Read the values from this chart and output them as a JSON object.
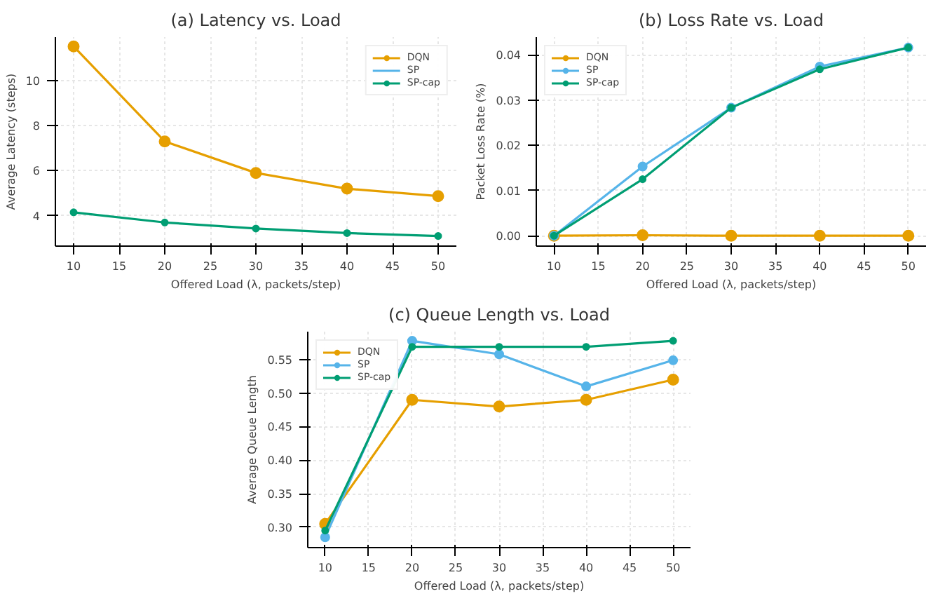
{
  "chart_data": [
    {
      "type": "line",
      "title": "(a) Latency vs. Load",
      "xlabel": "Offered Load (λ, packets/step)",
      "ylabel": "Average Latency (steps)",
      "x": [
        10,
        20,
        30,
        40,
        50
      ],
      "xlim": [
        8,
        52
      ],
      "xticks": [
        10,
        15,
        20,
        25,
        30,
        35,
        40,
        45,
        50
      ],
      "ylim": [
        2.65,
        11.93
      ],
      "yticks": [
        4,
        6,
        8,
        10
      ],
      "grid": true,
      "legend": "top right",
      "marker": "circle",
      "series": [
        {
          "name": "DQN",
          "color": "#e69f00",
          "values": [
            11.52,
            7.3,
            5.9,
            5.2,
            4.87
          ]
        },
        {
          "name": "SP",
          "color": "#56b4e9",
          "values": [
            null,
            null,
            null,
            null,
            null
          ]
        },
        {
          "name": "SP-cap",
          "color": "#009e73",
          "values": [
            4.15,
            3.7,
            3.43,
            3.23,
            3.1
          ]
        }
      ]
    },
    {
      "type": "line",
      "title": "(b) Loss Rate vs. Load",
      "xlabel": "Offered Load (λ, packets/step)",
      "ylabel": "Packet Loss Rate (%)",
      "x": [
        10,
        20,
        30,
        40,
        50
      ],
      "xlim": [
        8,
        52
      ],
      "xticks": [
        10,
        15,
        20,
        25,
        30,
        35,
        40,
        45,
        50
      ],
      "ylim": [
        -0.0023,
        0.0439
      ],
      "yticks": [
        {
          "value": 0,
          "label": "0.00"
        },
        {
          "value": 0.01,
          "label": "0.01"
        },
        {
          "value": 0.02,
          "label": "0.02"
        },
        {
          "value": 0.03,
          "label": "0.03"
        },
        {
          "value": 0.04,
          "label": "0.04"
        }
      ],
      "grid": true,
      "legend": "top left",
      "marker": "circle",
      "series": [
        {
          "name": "DQN",
          "color": "#e69f00",
          "values": [
            0,
            0.0001,
            0,
            0,
            0
          ]
        },
        {
          "name": "SP",
          "color": "#56b4e9",
          "values": [
            0,
            0.0153,
            0.0283,
            0.0374,
            0.0416
          ]
        },
        {
          "name": "SP-cap",
          "color": "#009e73",
          "values": [
            0,
            0.0125,
            0.0283,
            0.0368,
            0.0416
          ]
        }
      ]
    },
    {
      "type": "line",
      "title": "(c) Queue Length vs. Load",
      "xlabel": "Offered Load (λ, packets/step)",
      "ylabel": "Average Queue Length",
      "x": [
        10,
        20,
        30,
        40,
        50
      ],
      "xlim": [
        8,
        52
      ],
      "xticks": [
        10,
        15,
        20,
        25,
        30,
        35,
        40,
        45,
        50
      ],
      "ylim": [
        0.2696,
        0.5917
      ],
      "yticks": [
        {
          "value": 0.3,
          "label": "0.30"
        },
        {
          "value": 0.35,
          "label": "0.35"
        },
        {
          "value": 0.4,
          "label": "0.40"
        },
        {
          "value": 0.45,
          "label": "0.45"
        },
        {
          "value": 0.5,
          "label": "0.50"
        },
        {
          "value": 0.55,
          "label": "0.55"
        }
      ],
      "grid": true,
      "legend": "top left",
      "marker": "circle",
      "series": [
        {
          "name": "DQN",
          "color": "#e69f00",
          "values": [
            0.305,
            0.49,
            0.48,
            0.49,
            0.52
          ]
        },
        {
          "name": "SP",
          "color": "#56b4e9",
          "values": [
            0.285,
            0.578,
            0.558,
            0.51,
            0.549
          ]
        },
        {
          "name": "SP-cap",
          "color": "#009e73",
          "values": [
            0.295,
            0.569,
            0.569,
            0.569,
            0.578
          ]
        }
      ]
    }
  ]
}
